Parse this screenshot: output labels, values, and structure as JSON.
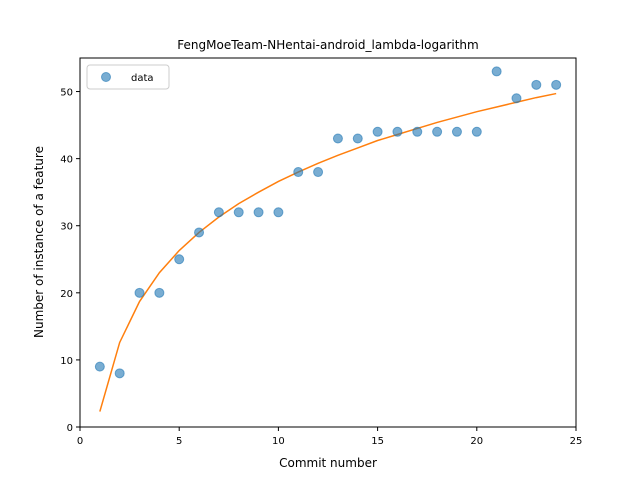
{
  "chart_data": {
    "type": "scatter",
    "title": "FengMoeTeam-NHentai-android_lambda-logarithm",
    "xlabel": "Commit number",
    "ylabel": "Number of instance of a feature",
    "xlim": [
      0,
      25
    ],
    "ylim": [
      0,
      55
    ],
    "xticks": [
      0,
      5,
      10,
      15,
      20,
      25
    ],
    "yticks": [
      0,
      10,
      20,
      30,
      40,
      50
    ],
    "grid": false,
    "legend_placement": "top-left",
    "legend": [
      "data"
    ],
    "series": [
      {
        "name": "data",
        "kind": "scatter",
        "color": "#1f77b4",
        "x": [
          1,
          2,
          3,
          4,
          5,
          6,
          7,
          8,
          9,
          10,
          11,
          12,
          13,
          14,
          15,
          16,
          17,
          18,
          19,
          20,
          21,
          22,
          23,
          24
        ],
        "y": [
          9,
          8,
          20,
          20,
          25,
          29,
          32,
          32,
          32,
          32,
          38,
          38,
          43,
          43,
          44,
          44,
          44,
          44,
          44,
          44,
          53,
          49,
          51,
          51
        ]
      },
      {
        "kind": "line",
        "color": "#ff7f0e",
        "x": [
          1,
          2,
          3,
          4,
          5,
          6,
          7,
          8,
          9,
          10,
          11,
          12,
          13,
          14,
          15,
          16,
          17,
          18,
          19,
          20,
          21,
          22,
          23,
          24
        ],
        "y": [
          2.3,
          12.6,
          18.7,
          23.0,
          26.3,
          29.0,
          31.3,
          33.3,
          35.0,
          36.6,
          38.0,
          39.3,
          40.5,
          41.6,
          42.7,
          43.6,
          44.5,
          45.4,
          46.2,
          47.0,
          47.7,
          48.4,
          49.1,
          49.7
        ]
      }
    ]
  }
}
